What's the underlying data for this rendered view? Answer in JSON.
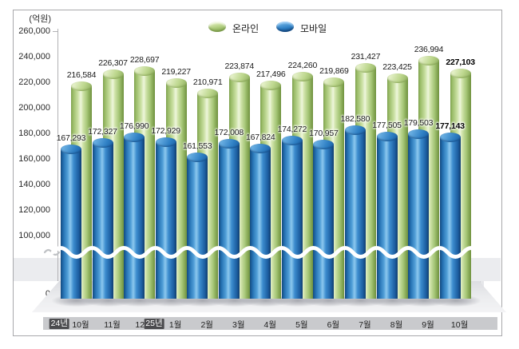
{
  "unit_label": "(억원)",
  "legend": {
    "items": [
      {
        "label": "온라인",
        "color": "#a9c877"
      },
      {
        "label": "모바일",
        "color": "#2f80c4"
      }
    ]
  },
  "chart_data": {
    "type": "bar",
    "title": "",
    "unit_label": "(억원)",
    "categories": [
      "10월",
      "11월",
      "12월",
      "1월",
      "2월",
      "3월",
      "4월",
      "5월",
      "6월",
      "7월",
      "8월",
      "9월",
      "10월"
    ],
    "year_badges": [
      {
        "label": "24년",
        "index": 0
      },
      {
        "label": "25년",
        "index": 3
      }
    ],
    "series": [
      {
        "name": "온라인",
        "color_key": "online",
        "values": [
          216584,
          226307,
          228697,
          219227,
          210971,
          223874,
          217496,
          224260,
          219869,
          231427,
          223425,
          236994,
          227103
        ]
      },
      {
        "name": "모바일",
        "color_key": "mobile",
        "values": [
          167293,
          172327,
          176990,
          172929,
          161553,
          172008,
          167824,
          174272,
          170957,
          182580,
          177505,
          179503,
          177143
        ]
      }
    ],
    "y_axis": {
      "ticks_upper": [
        260000,
        240000,
        220000,
        200000,
        180000,
        160000,
        140000,
        120000,
        100000
      ],
      "ticks_lower": [
        20000,
        0
      ],
      "broken_axis": true,
      "ylim_upper": [
        100000,
        260000
      ]
    },
    "emphasize_last_category": true,
    "legend_position": "top",
    "grid": false
  }
}
